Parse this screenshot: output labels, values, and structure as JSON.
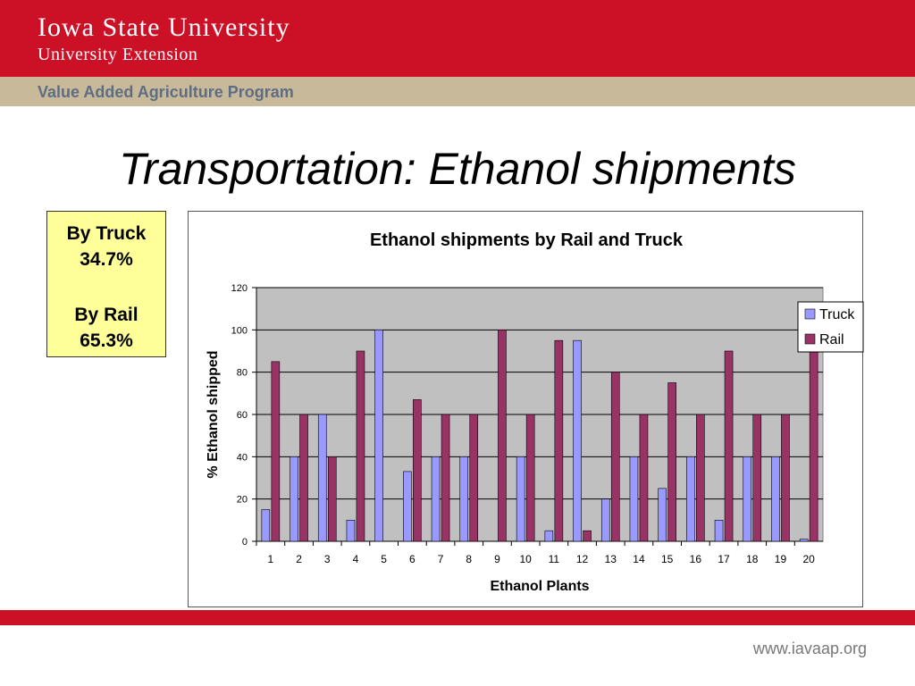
{
  "header": {
    "university_main": "Iowa State University",
    "extension": "University Extension",
    "program": "Value Added Agriculture Program"
  },
  "slide": {
    "title": "Transportation:  Ethanol shipments"
  },
  "callout": {
    "truck_label": "By Truck",
    "truck_value": "34.7%",
    "rail_label": "By Rail",
    "rail_value": "65.3%"
  },
  "footer": {
    "url": "www.iavaap.org"
  },
  "colors": {
    "brand_red": "#cc1126",
    "tan": "#c8b99a",
    "truck": "#9999ff",
    "rail": "#993366",
    "plot_bg": "#c0c0c0"
  },
  "chart_data": {
    "type": "bar",
    "title": "Ethanol shipments by Rail and Truck",
    "xlabel": "Ethanol Plants",
    "ylabel": "% Ethanol shipped",
    "ylim": [
      0,
      120
    ],
    "yticks": [
      0,
      20,
      40,
      60,
      80,
      100,
      120
    ],
    "grid": true,
    "legend_position": "right",
    "categories": [
      "1",
      "2",
      "3",
      "4",
      "5",
      "6",
      "7",
      "8",
      "9",
      "10",
      "11",
      "12",
      "13",
      "14",
      "15",
      "16",
      "17",
      "18",
      "19",
      "20"
    ],
    "series": [
      {
        "name": "Truck",
        "color": "#9999ff",
        "values": [
          15,
          40,
          60,
          10,
          100,
          33,
          40,
          40,
          0,
          40,
          5,
          95,
          20,
          40,
          25,
          40,
          10,
          40,
          40,
          1
        ]
      },
      {
        "name": "Rail",
        "color": "#993366",
        "values": [
          85,
          60,
          40,
          90,
          0,
          67,
          60,
          60,
          100,
          60,
          95,
          5,
          80,
          60,
          75,
          60,
          90,
          60,
          60,
          99
        ]
      }
    ]
  }
}
